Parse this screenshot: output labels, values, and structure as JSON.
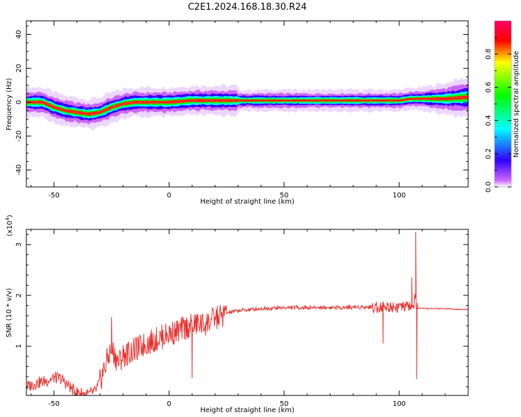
{
  "title": "C2E1.2024.168.18.30.R24",
  "chart_data": [
    {
      "type": "heatmap",
      "xlabel": "Height of straight line (km)",
      "ylabel": "Frequency (Hz)",
      "xlim": [
        -62,
        130
      ],
      "ylim": [
        -50,
        48
      ],
      "xticks": [
        -50,
        0,
        50,
        100
      ],
      "yticks": [
        40,
        20,
        0,
        -20,
        -40
      ],
      "colorbar": {
        "label": "Normalized spectral amplitude",
        "range": [
          0,
          1
        ],
        "ticks": [
          "0.0",
          "0.2",
          "0.4",
          "0.6",
          "0.8"
        ],
        "colors": [
          "#ffffff",
          "#cc66ff",
          "#3300ff",
          "#00ffff",
          "#00ff00",
          "#ffff00",
          "#ff0000",
          "#ff0066"
        ]
      },
      "ridge": {
        "x": [
          -62,
          -55,
          -50,
          -45,
          -40,
          -35,
          -30,
          -25,
          -20,
          -15,
          -10,
          -5,
          0,
          5,
          10,
          20,
          30,
          50,
          80,
          90,
          95,
          100,
          105,
          110,
          120,
          130
        ],
        "y": [
          0,
          0,
          -3,
          -5,
          -6,
          -7,
          -6,
          -3,
          -1,
          0,
          0,
          0,
          0,
          0.5,
          1,
          1,
          1,
          1,
          1,
          1,
          1,
          1,
          2,
          2,
          2,
          3
        ]
      }
    },
    {
      "type": "line",
      "xlabel": "Height of straight line (km)",
      "ylabel": "SNR (10 * v/v)",
      "yscale_label": "(x10",
      "yscale_exp": "4",
      "yscale_suffix": ")",
      "xlim": [
        -62,
        130
      ],
      "ylim": [
        0.03,
        3.3
      ],
      "xticks": [
        -50,
        0,
        50,
        100
      ],
      "yticks": [
        1,
        2,
        3
      ],
      "color": "#e8302e",
      "x": [
        -62,
        -57,
        -53,
        -50,
        -47,
        -45,
        -42,
        -40,
        -37,
        -35,
        -32,
        -30,
        -27,
        -25,
        -22,
        -20,
        -17,
        -15,
        -12,
        -10,
        -7,
        -5,
        -2,
        0,
        3,
        5,
        8,
        10,
        13,
        15,
        18,
        20,
        23,
        25,
        28,
        30,
        35,
        40,
        45,
        50,
        55,
        60,
        65,
        70,
        75,
        80,
        85,
        90,
        92,
        95,
        97,
        100,
        102,
        104,
        105,
        106,
        107,
        107.5,
        108,
        110,
        115,
        120,
        125,
        130
      ],
      "y": [
        0.2,
        0.28,
        0.32,
        0.38,
        0.36,
        0.28,
        0.15,
        0.1,
        0.06,
        0.05,
        0.12,
        0.3,
        0.72,
        0.95,
        0.68,
        0.82,
        0.88,
        0.92,
        1.0,
        1.05,
        1.1,
        1.15,
        1.2,
        1.25,
        1.28,
        1.32,
        1.38,
        1.4,
        1.45,
        1.42,
        1.5,
        1.55,
        1.6,
        1.65,
        1.68,
        1.7,
        1.72,
        1.74,
        1.75,
        1.76,
        1.76,
        1.76,
        1.76,
        1.76,
        1.76,
        1.77,
        1.77,
        1.77,
        1.78,
        1.78,
        1.78,
        1.78,
        1.76,
        1.8,
        1.75,
        1.76,
        2.0,
        1.7,
        1.75,
        1.74,
        1.74,
        1.74,
        1.73,
        1.72
      ],
      "spikes": [
        {
          "x": -25,
          "y": 1.57
        },
        {
          "x": 10,
          "y": 0.37
        },
        {
          "x": 93,
          "y": 1.05
        },
        {
          "x": 105.5,
          "y": 2.35
        },
        {
          "x": 107.2,
          "y": 3.25
        },
        {
          "x": 107.6,
          "y": 0.35
        }
      ]
    }
  ]
}
